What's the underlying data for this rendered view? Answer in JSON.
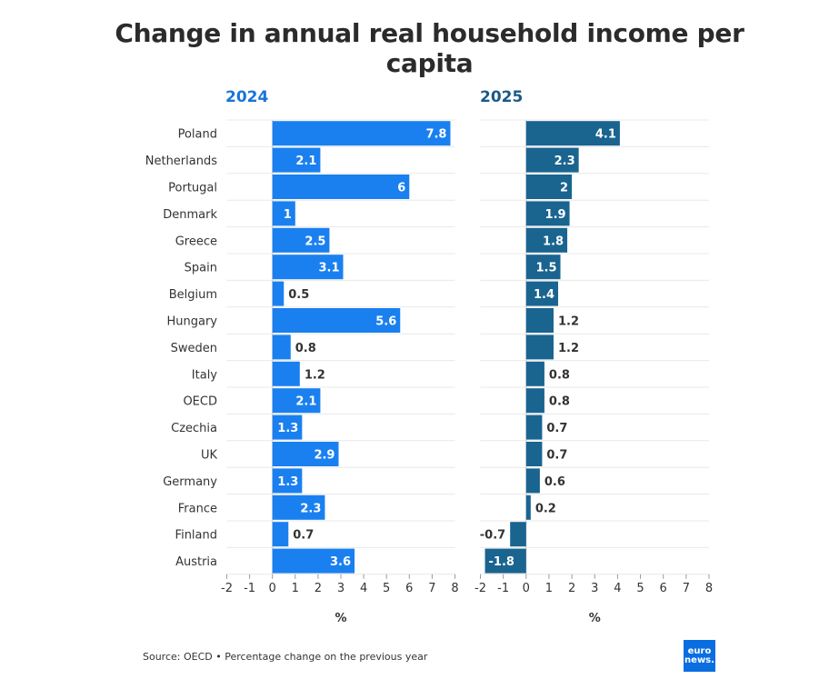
{
  "title": "Change in annual real household income per capita",
  "source": "Source: OECD • Percentage change on the previous year",
  "logo": {
    "line1": "euro",
    "line2": "news."
  },
  "chart_data": {
    "type": "bar",
    "orientation": "horizontal",
    "categories": [
      "Poland",
      "Netherlands",
      "Portugal",
      "Denmark",
      "Greece",
      "Spain",
      "Belgium",
      "Hungary",
      "Sweden",
      "Italy",
      "OECD",
      "Czechia",
      "UK",
      "Germany",
      "France",
      "Finland",
      "Austria"
    ],
    "xlim": [
      -2,
      8
    ],
    "xticks": [
      "-2",
      "-1",
      "0",
      "1",
      "2",
      "3",
      "4",
      "5",
      "6",
      "7",
      "8"
    ],
    "xlabel": "%",
    "grid": true,
    "panels": [
      {
        "title": "2024",
        "color": "#1a80f0",
        "title_color": "#1a73d9",
        "values": [
          7.8,
          2.1,
          6,
          1,
          2.5,
          3.1,
          0.5,
          5.6,
          0.8,
          1.2,
          2.1,
          1.3,
          2.9,
          1.3,
          2.3,
          0.7,
          3.6
        ]
      },
      {
        "title": "2025",
        "color": "#1a6490",
        "title_color": "#1a5a85",
        "values": [
          4.1,
          2.3,
          2,
          1.9,
          1.8,
          1.5,
          1.4,
          1.2,
          1.2,
          0.8,
          0.8,
          0.7,
          0.7,
          0.6,
          0.2,
          -0.7,
          -1.8
        ]
      }
    ]
  }
}
